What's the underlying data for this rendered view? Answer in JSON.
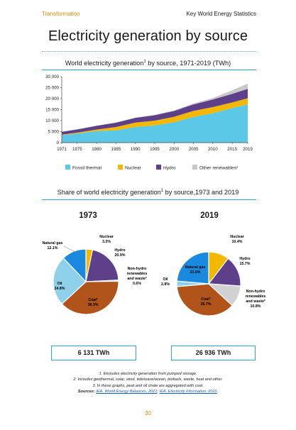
{
  "header": {
    "section": "Transformation",
    "publication": "Key World Energy Statistics"
  },
  "page_title": "Electricity generation by source",
  "chart_title": "World electricity generation",
  "chart_title_sup": "1",
  "chart_title_rest": " by source, 1971-2019 (TWh)",
  "pies_title": "Share of world electricity generation",
  "pies_title_sup": "1",
  "pies_title_rest": " by source,1973 and 2019",
  "colors": {
    "fossil": "#5bc8e8",
    "nuclear": "#f5b800",
    "hydro": "#5d3f8a",
    "other": "#c8c8c8",
    "natural_gas": "#1a8ae0",
    "oil": "#8fd1ea",
    "coal": "#b0541b",
    "nonhydro": "#d2d2d2",
    "accent": "#2ea3d8"
  },
  "chart_data": [
    {
      "type": "area",
      "stacked": true,
      "title": "World electricity generation1 by source, 1971-2019 (TWh)",
      "x": [
        1971,
        1975,
        1980,
        1985,
        1990,
        1995,
        2000,
        2005,
        2010,
        2015,
        2019
      ],
      "x_ticks": [
        "1971",
        "1975",
        "1980",
        "1985",
        "1990",
        "1995",
        "2000",
        "2005",
        "2010",
        "2015",
        "2019"
      ],
      "y_ticks": [
        "0",
        "5 000",
        "10 000",
        "15 000",
        "20 000",
        "25 000",
        "30 000"
      ],
      "ylim": [
        0,
        30000
      ],
      "series": [
        {
          "name": "Fossil thermal",
          "values": [
            3500,
            4150,
            5250,
            5600,
            7100,
            7800,
            9300,
            11700,
            13400,
            15700,
            17400
          ]
        },
        {
          "name": "Nuclear",
          "values": [
            100,
            400,
            700,
            1500,
            2000,
            2200,
            2450,
            2750,
            2750,
            2550,
            2800
          ]
        },
        {
          "name": "Hydro",
          "values": [
            1300,
            1450,
            1700,
            1950,
            2150,
            2450,
            2650,
            2950,
            3450,
            3950,
            4250
          ]
        },
        {
          "name": "Other renewables²",
          "values": [
            50,
            60,
            80,
            120,
            170,
            210,
            250,
            370,
            680,
            1560,
            2400
          ]
        }
      ],
      "legend_position": "bottom",
      "grid": false
    },
    {
      "type": "pie",
      "title": "1973",
      "total": "6 131 TWh",
      "slices": [
        {
          "label": "Nuclear",
          "value_label": "3.3%",
          "value": 3.3
        },
        {
          "label": "Hydro",
          "value_label": "20.9%",
          "value": 20.9
        },
        {
          "label": "Non-hydro renewables and waste²",
          "value_label": "0.6%",
          "value": 0.6
        },
        {
          "label": "Coal³",
          "value_label": "38.3%",
          "value": 38.3
        },
        {
          "label": "Oil",
          "value_label": "24.8%",
          "value": 24.8
        },
        {
          "label": "Natural gas",
          "value_label": "12.1%",
          "value": 12.1
        }
      ]
    },
    {
      "type": "pie",
      "title": "2019",
      "total": "26 936 TWh",
      "slices": [
        {
          "label": "Nuclear",
          "value_label": "10.4%",
          "value": 10.4
        },
        {
          "label": "Hydro",
          "value_label": "15.7%",
          "value": 15.7
        },
        {
          "label": "Non-hydro renewables and waste²",
          "value_label": "10.8%",
          "value": 10.8
        },
        {
          "label": "Coal³",
          "value_label": "36.7%",
          "value": 36.7
        },
        {
          "label": "Oil",
          "value_label": "2.8%",
          "value": 2.8
        },
        {
          "label": "Natural gas",
          "value_label": "23.6%",
          "value": 23.6
        }
      ]
    }
  ],
  "pie1973": {
    "year": "1973",
    "total": "6 131 TWh",
    "nuclear": "Nuclear",
    "nuclear_pct": "3.3%",
    "hydro": "Hydro",
    "hydro_pct": "20.9%",
    "nonhydro_1": "Non-hydro",
    "nonhydro_2": "renewables",
    "nonhydro_3": "and waste²",
    "nonhydro_pct": "0.6%",
    "coal": "Coal³",
    "coal_pct": "38.3%",
    "oil": "Oil",
    "oil_pct": "24.8%",
    "gas": "Natural gas",
    "gas_pct": "12.1%"
  },
  "pie2019": {
    "year": "2019",
    "total": "26 936 TWh",
    "nuclear": "Nuclear",
    "nuclear_pct": "10.4%",
    "hydro": "Hydro",
    "hydro_pct": "15.7%",
    "nonhydro_1": "Non-hydro",
    "nonhydro_2": "renewables",
    "nonhydro_3": "and waste²",
    "nonhydro_pct": "10.8%",
    "coal": "Coal³",
    "coal_pct": "36.7%",
    "oil": "Oil",
    "oil_pct": "2.8%",
    "gas": "Natural gas",
    "gas_pct": "23.6%"
  },
  "notes": {
    "n1": "1. Excludes electricity generation from pumped storage.",
    "n2": "2. Includes geothermal, solar, wind, tide/wave/ocean, biofuels, waste, heat and other.",
    "n3": "3. In these graphs, peat and oil shale are aggregated with coal.",
    "sources_label": "Sources: ",
    "source1": "IEA. World Energy Balances, 2021",
    "sep": "; ",
    "source2": "IEA. Electricity Information, 2021",
    "end": "."
  },
  "page_number": "30"
}
